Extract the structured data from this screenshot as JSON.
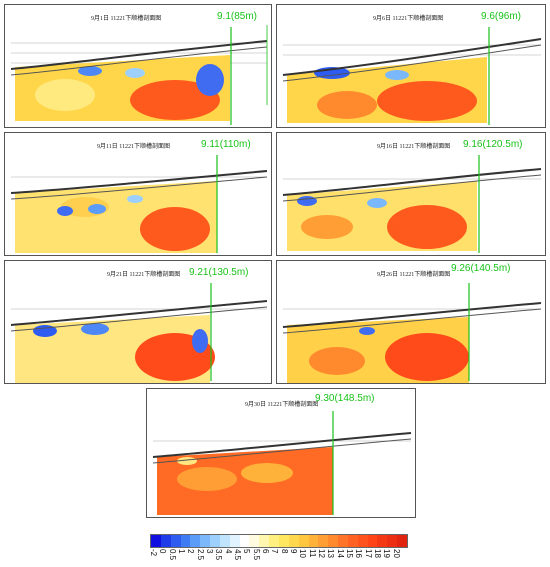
{
  "panels": [
    {
      "title": "9月1日 11221下顺槽剖面图",
      "tag": "9.1(85m)"
    },
    {
      "title": "9月6日 11221下顺槽剖面图",
      "tag": "9.6(96m)"
    },
    {
      "title": "9月11日 11221下顺槽剖面图",
      "tag": "9.11(110m)"
    },
    {
      "title": "9月16日 11221下顺槽剖面图",
      "tag": "9.16(120.5m)"
    },
    {
      "title": "9月21日 11221下顺槽剖面图",
      "tag": "9.21(130.5m)"
    },
    {
      "title": "9月26日 11221下顺槽剖面图",
      "tag": "9.26(140.5m)"
    },
    {
      "title": "9月30日 11221下顺槽剖面图",
      "tag": "9.30(148.5m)"
    }
  ],
  "colorbar": {
    "ticks": [
      "-2",
      "0",
      "0.5",
      "1",
      "2",
      "2.5",
      "3",
      "3.5",
      "4",
      "4.5",
      "5",
      "5.5",
      "6",
      "7",
      "8",
      "9",
      "10",
      "11",
      "12",
      "13",
      "14",
      "15",
      "16",
      "17",
      "18",
      "19",
      "20"
    ],
    "colors": [
      "#1010e0",
      "#1f3ce8",
      "#2f5cf0",
      "#3f7cf4",
      "#5a9cf8",
      "#7ab8fb",
      "#9dd0fd",
      "#c0e4fe",
      "#e0f3ff",
      "#ffffff",
      "#fffbe0",
      "#fff6b0",
      "#fff080",
      "#ffe860",
      "#ffd850",
      "#ffc640",
      "#ffb23a",
      "#ff9e34",
      "#ff8a2e",
      "#ff7428",
      "#ff6222",
      "#ff521c",
      "#ff4418",
      "#f53814",
      "#ec2e12",
      "#e02410"
    ],
    "tag_color": "#19c219"
  }
}
